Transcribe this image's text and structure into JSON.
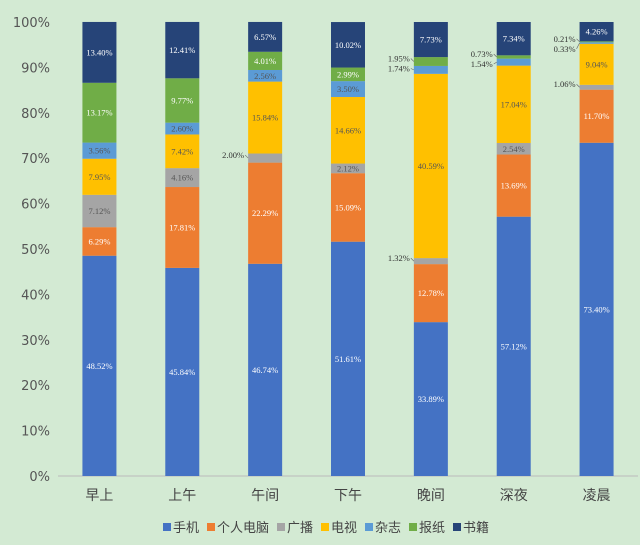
{
  "chart_data": {
    "type": "bar",
    "stacked": true,
    "categories": [
      "早上",
      "上午",
      "午间",
      "下午",
      "晚间",
      "深夜",
      "凌晨"
    ],
    "ylim": [
      0,
      100
    ],
    "yticks": [
      "0%",
      "10%",
      "20%",
      "30%",
      "40%",
      "50%",
      "60%",
      "70%",
      "80%",
      "90%",
      "100%"
    ],
    "grid": false,
    "legend": "bottom",
    "series": [
      {
        "name": "手机",
        "color": "#4472c4",
        "values": [
          48.52,
          45.84,
          46.74,
          51.61,
          33.89,
          57.12,
          73.4
        ]
      },
      {
        "name": "个人电脑",
        "color": "#ed7d31",
        "values": [
          6.29,
          17.81,
          22.29,
          15.09,
          12.78,
          13.69,
          11.7
        ]
      },
      {
        "name": "广播",
        "color": "#a5a5a5",
        "values": [
          7.12,
          4.16,
          2.0,
          2.12,
          1.32,
          2.54,
          1.06
        ]
      },
      {
        "name": "电视",
        "color": "#ffc000",
        "values": [
          7.95,
          7.42,
          15.84,
          14.66,
          40.59,
          17.04,
          9.04
        ]
      },
      {
        "name": "杂志",
        "color": "#5b9bd5",
        "values": [
          3.56,
          2.6,
          2.56,
          3.5,
          1.74,
          1.54,
          0.33
        ]
      },
      {
        "name": "报纸",
        "color": "#70ad47",
        "values": [
          13.17,
          9.77,
          4.01,
          2.99,
          1.95,
          0.73,
          0.21
        ]
      },
      {
        "name": "书籍",
        "color": "#264478",
        "values": [
          13.4,
          12.41,
          6.57,
          10.02,
          7.73,
          7.34,
          4.26
        ]
      }
    ]
  }
}
